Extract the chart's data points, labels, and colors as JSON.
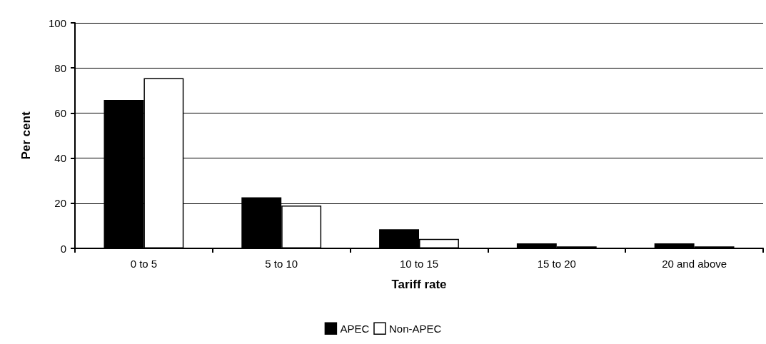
{
  "chart_data": {
    "type": "bar",
    "xlabel": "Tariff rate",
    "ylabel": "Per cent",
    "categories": [
      "0 to 5",
      "5 to 10",
      "10 to 15",
      "15 to 20",
      "20 and above"
    ],
    "series": [
      {
        "name": "APEC",
        "color": "#000000",
        "values": [
          65.8,
          22.6,
          8.5,
          2.2,
          2.2
        ]
      },
      {
        "name": "Non-APEC",
        "color": "#ffffff",
        "values": [
          75.5,
          19,
          4.2,
          0.9,
          0.9
        ]
      }
    ],
    "ylim": [
      0,
      100
    ],
    "yticks": [
      0,
      20,
      40,
      60,
      80,
      100
    ],
    "grid": "y",
    "legend": "bottom"
  }
}
